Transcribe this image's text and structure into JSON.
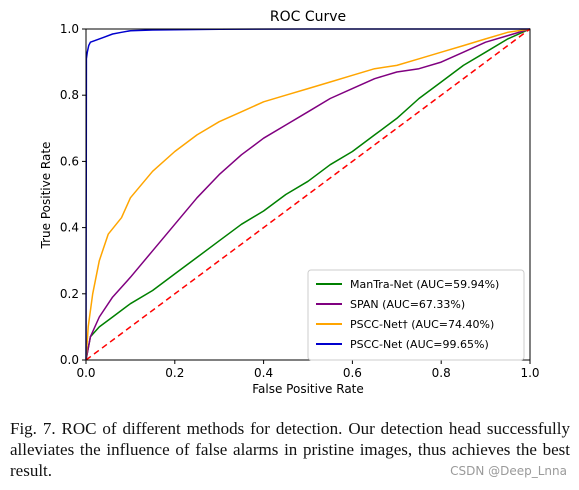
{
  "chart_data": {
    "type": "line",
    "title": "ROC Curve",
    "xlabel": "False Positive Rate",
    "ylabel": "True Positive Rate",
    "xlim": [
      0.0,
      1.0
    ],
    "ylim": [
      0.0,
      1.0
    ],
    "xticks": [
      "0.0",
      "0.2",
      "0.4",
      "0.6",
      "0.8",
      "1.0"
    ],
    "yticks": [
      "0.0",
      "0.2",
      "0.4",
      "0.6",
      "0.8",
      "1.0"
    ],
    "grid": false,
    "legend_position": "lower-right",
    "series": [
      {
        "name": "ManTra-Net (AUC=59.94%)",
        "color": "#008000",
        "line_style": "solid",
        "x": [
          0.0,
          0.01,
          0.03,
          0.06,
          0.1,
          0.15,
          0.2,
          0.25,
          0.3,
          0.35,
          0.4,
          0.45,
          0.5,
          0.55,
          0.6,
          0.65,
          0.7,
          0.75,
          0.8,
          0.85,
          0.9,
          0.95,
          1.0
        ],
        "y": [
          0.0,
          0.07,
          0.1,
          0.13,
          0.17,
          0.21,
          0.26,
          0.31,
          0.36,
          0.41,
          0.45,
          0.5,
          0.54,
          0.59,
          0.63,
          0.68,
          0.73,
          0.79,
          0.84,
          0.89,
          0.93,
          0.97,
          1.0
        ]
      },
      {
        "name": "SPAN (AUC=67.33%)",
        "color": "#800080",
        "line_style": "solid",
        "x": [
          0.0,
          0.01,
          0.03,
          0.06,
          0.1,
          0.15,
          0.2,
          0.25,
          0.3,
          0.35,
          0.4,
          0.45,
          0.5,
          0.55,
          0.6,
          0.65,
          0.7,
          0.75,
          0.8,
          0.85,
          0.9,
          0.95,
          1.0
        ],
        "y": [
          0.0,
          0.07,
          0.13,
          0.19,
          0.25,
          0.33,
          0.41,
          0.49,
          0.56,
          0.62,
          0.67,
          0.71,
          0.75,
          0.79,
          0.82,
          0.85,
          0.87,
          0.88,
          0.9,
          0.93,
          0.96,
          0.98,
          1.0
        ]
      },
      {
        "name": "PSCC-Net† (AUC=74.40%)",
        "color": "#FFA500",
        "line_style": "solid",
        "x": [
          0.0,
          0.005,
          0.015,
          0.03,
          0.05,
          0.08,
          0.1,
          0.15,
          0.2,
          0.25,
          0.3,
          0.35,
          0.4,
          0.45,
          0.5,
          0.55,
          0.6,
          0.65,
          0.7,
          0.75,
          0.8,
          0.85,
          0.9,
          0.95,
          1.0
        ],
        "y": [
          0.0,
          0.1,
          0.2,
          0.3,
          0.38,
          0.43,
          0.49,
          0.57,
          0.63,
          0.68,
          0.72,
          0.75,
          0.78,
          0.8,
          0.82,
          0.84,
          0.86,
          0.88,
          0.89,
          0.91,
          0.93,
          0.95,
          0.97,
          0.99,
          1.0
        ]
      },
      {
        "name": "PSCC-Net (AUC=99.65%)",
        "color": "#0000CD",
        "line_style": "solid",
        "x": [
          0.0,
          0.001,
          0.003,
          0.006,
          0.01,
          0.02,
          0.04,
          0.06,
          0.08,
          0.1,
          0.15,
          0.2,
          0.3,
          0.5,
          0.7,
          1.0
        ],
        "y": [
          0.0,
          0.91,
          0.93,
          0.95,
          0.96,
          0.965,
          0.975,
          0.985,
          0.99,
          0.995,
          0.997,
          0.998,
          0.999,
          1.0,
          1.0,
          1.0
        ]
      },
      {
        "name": "",
        "color": "#FF0000",
        "line_style": "dashed",
        "x": [
          0.0,
          1.0
        ],
        "y": [
          0.0,
          1.0
        ]
      }
    ]
  },
  "caption": {
    "text": "Fig. 7.  ROC of different methods for detection. Our detection head successfully alleviates the influence of false alarms in pristine images, thus achieves the best result."
  },
  "watermark": {
    "text": "CSDN @Deep_Lnna"
  }
}
